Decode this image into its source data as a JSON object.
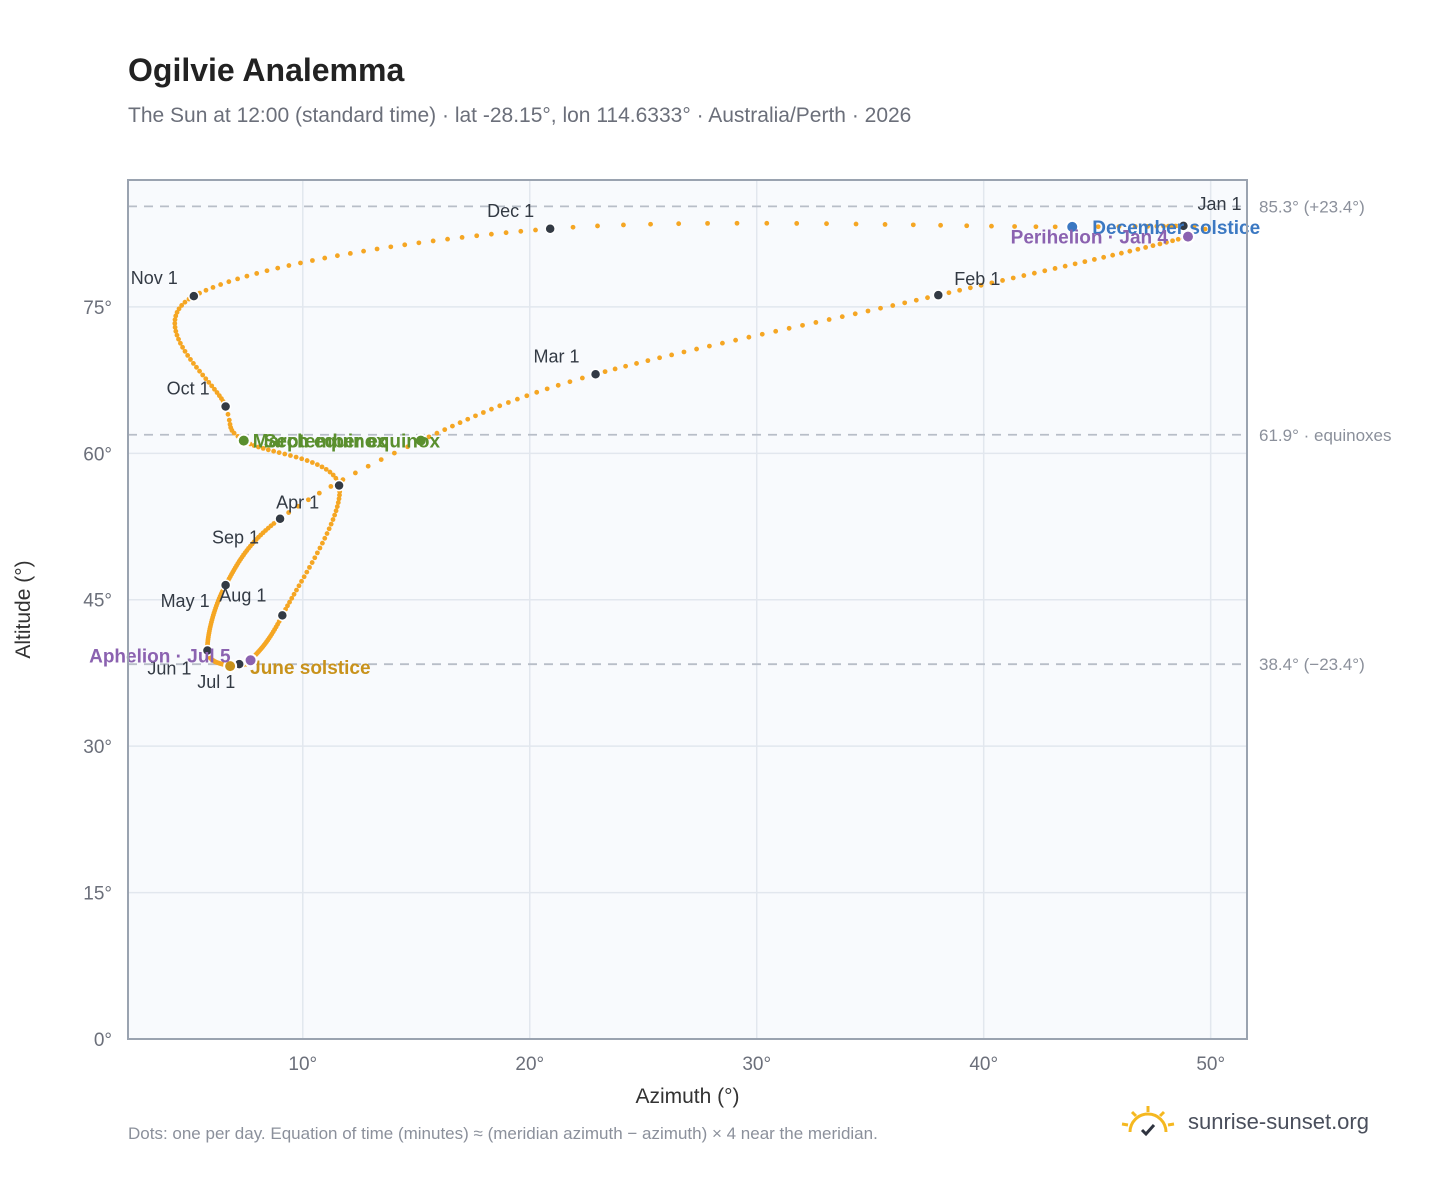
{
  "header": {
    "title": "Ogilvie Analemma",
    "subtitle": "The Sun at 12:00 (standard time) · lat -28.15°, lon 114.6333° · Australia/Perth · 2026"
  },
  "footer": {
    "note": "Dots: one per day. Equation of time (minutes) ≈ (meridian azimuth − azimuth) × 4 near the meridian.",
    "brand": "sunrise-sunset.org"
  },
  "colors": {
    "curve": "#f5a623",
    "month_marker": "#333a44",
    "equinox": "#5a8f2e",
    "december_solstice": "#3b78c2",
    "june_solstice": "#c8921b",
    "apsis": "#8b62b0",
    "reference_line": "#b8bec8",
    "plot_bg": "#f8fafd",
    "brand_sun": "#f5b820"
  },
  "chart_data": {
    "type": "scatter",
    "xlabel": "Azimuth (°)",
    "ylabel": "Altitude (°)",
    "xlim": [
      2.3,
      51.6
    ],
    "ylim": [
      0,
      88
    ],
    "x_ticks": [
      10,
      20,
      30,
      40,
      50
    ],
    "x_tick_labels": [
      "10°",
      "20°",
      "30°",
      "40°",
      "50°"
    ],
    "y_ticks": [
      0,
      15,
      30,
      45,
      60,
      75
    ],
    "y_tick_labels": [
      "0°",
      "15°",
      "30°",
      "45°",
      "60°",
      "75°"
    ],
    "grid": true,
    "reference_lines": [
      {
        "y": 85.3,
        "label": "85.3° (+23.4°)"
      },
      {
        "y": 61.9,
        "label": "61.9° · equinoxes"
      },
      {
        "y": 38.4,
        "label": "38.4° (−23.4°)"
      }
    ],
    "month_markers": [
      {
        "label": "Jan 1",
        "x": 48.8,
        "y": 83.3
      },
      {
        "label": "Feb 1",
        "x": 38.0,
        "y": 76.2
      },
      {
        "label": "Mar 1",
        "x": 22.9,
        "y": 68.1
      },
      {
        "label": "Apr 1",
        "x": 9.0,
        "y": 53.3
      },
      {
        "label": "May 1",
        "x": 6.6,
        "y": 46.5
      },
      {
        "label": "Jun 1",
        "x": 5.8,
        "y": 39.8
      },
      {
        "label": "Jul 1",
        "x": 7.2,
        "y": 38.4
      },
      {
        "label": "Aug 1",
        "x": 9.1,
        "y": 43.4
      },
      {
        "label": "Sep 1",
        "x": 11.6,
        "y": 56.7
      },
      {
        "label": "Oct 1",
        "x": 6.6,
        "y": 64.8
      },
      {
        "label": "Nov 1",
        "x": 5.2,
        "y": 76.1
      },
      {
        "label": "Dec 1",
        "x": 20.9,
        "y": 83.0
      }
    ],
    "events": [
      {
        "label": "December solstice",
        "x": 43.9,
        "y": 83.2,
        "kind": "december_solstice"
      },
      {
        "label": "Perihelion · Jan 4",
        "x": 49.0,
        "y": 82.2,
        "kind": "apsis"
      },
      {
        "label": "March equinox",
        "x": 15.2,
        "y": 61.3,
        "kind": "equinox"
      },
      {
        "label": "September equinox",
        "x": 7.4,
        "y": 61.3,
        "kind": "equinox"
      },
      {
        "label": "June solstice",
        "x": 6.8,
        "y": 38.2,
        "kind": "june_solstice"
      },
      {
        "label": "Aphelion · Jul 5",
        "x": 7.7,
        "y": 38.8,
        "kind": "apsis"
      }
    ],
    "path": [
      {
        "doy": 1,
        "x": 48.8,
        "y": 83.3
      },
      {
        "doy": 4,
        "x": 49.0,
        "y": 82.2
      },
      {
        "doy": 32,
        "x": 38.0,
        "y": 76.2
      },
      {
        "doy": 60,
        "x": 22.9,
        "y": 68.1
      },
      {
        "doy": 79,
        "x": 15.2,
        "y": 61.3
      },
      {
        "doy": 91,
        "x": 9.0,
        "y": 53.3
      },
      {
        "doy": 121,
        "x": 6.6,
        "y": 46.5
      },
      {
        "doy": 152,
        "x": 5.8,
        "y": 39.8
      },
      {
        "doy": 172,
        "x": 6.8,
        "y": 38.2
      },
      {
        "doy": 182,
        "x": 7.2,
        "y": 38.4
      },
      {
        "doy": 186,
        "x": 7.7,
        "y": 38.8
      },
      {
        "doy": 213,
        "x": 9.1,
        "y": 43.4
      },
      {
        "doy": 244,
        "x": 11.6,
        "y": 56.7
      },
      {
        "doy": 266,
        "x": 7.4,
        "y": 61.3
      },
      {
        "doy": 274,
        "x": 6.6,
        "y": 64.8
      },
      {
        "doy": 305,
        "x": 5.2,
        "y": 76.1
      },
      {
        "doy": 335,
        "x": 20.9,
        "y": 83.0
      },
      {
        "doy": 355,
        "x": 43.9,
        "y": 83.2
      },
      {
        "doy": 366,
        "x": 48.8,
        "y": 83.3
      }
    ]
  }
}
